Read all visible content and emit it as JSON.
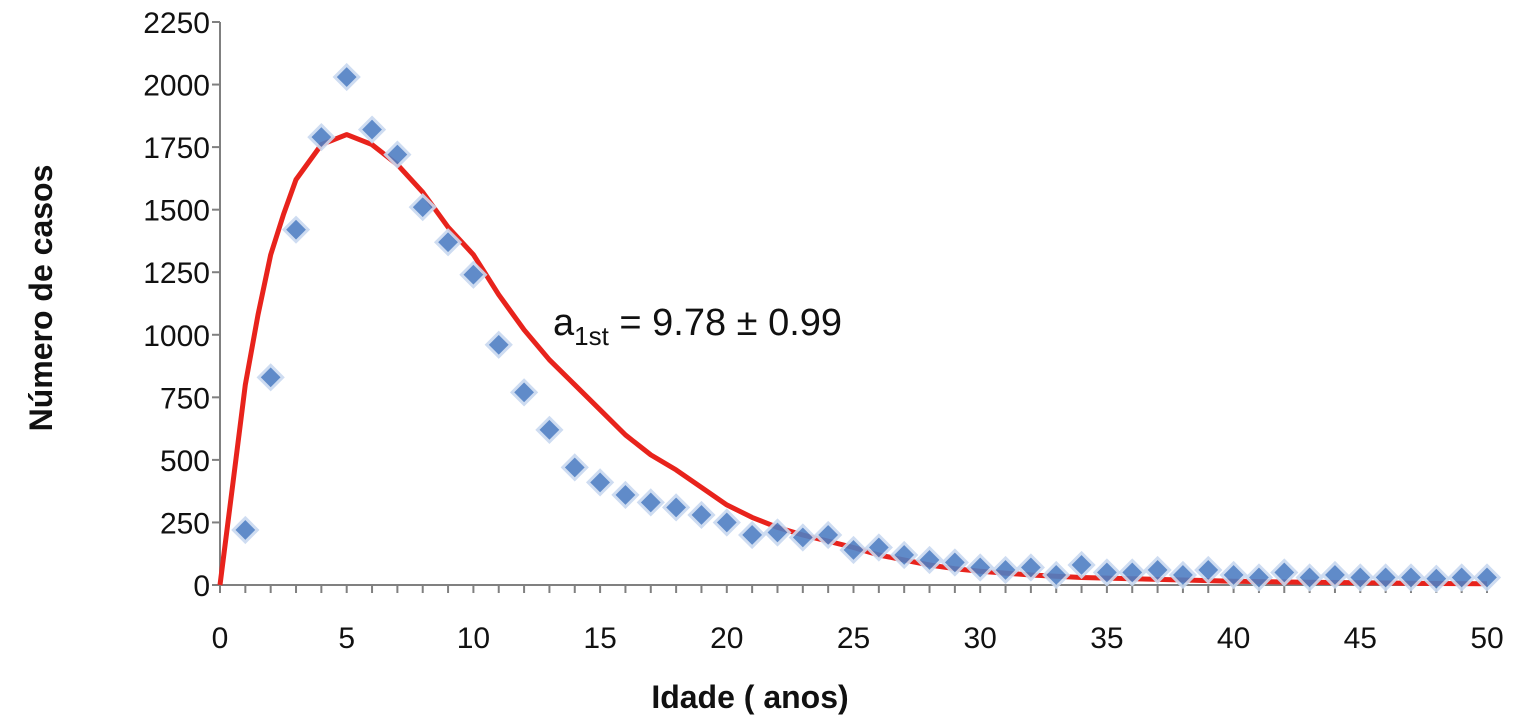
{
  "chart_data": {
    "type": "scatter",
    "title": "",
    "xlabel": "Idade ( anos)",
    "ylabel": "Número de casos",
    "xlim": [
      0,
      50
    ],
    "ylim": [
      0,
      2250
    ],
    "xticks": [
      "0",
      "5",
      "10",
      "15",
      "20",
      "25",
      "30",
      "35",
      "40",
      "45",
      "50"
    ],
    "yticks": [
      "0",
      "250",
      "500",
      "750",
      "1000",
      "1250",
      "1500",
      "1750",
      "2000",
      "2250"
    ],
    "grid": false,
    "annotation": {
      "main": "a",
      "sub": "1st",
      "rest": " = 9.78 ± 0.99"
    },
    "colors": {
      "points": "#4f7fc4",
      "fit": "#e8231c"
    },
    "series": [
      {
        "kind": "points",
        "x": [
          1,
          2,
          3,
          4,
          5,
          6,
          7,
          8,
          9,
          10,
          11,
          12,
          13,
          14,
          15,
          16,
          17,
          18,
          19,
          20,
          21,
          22,
          23,
          24,
          25,
          26,
          27,
          28,
          29,
          30,
          31,
          32,
          33,
          34,
          35,
          36,
          37,
          38,
          39,
          40,
          41,
          42,
          43,
          44,
          45,
          46,
          47,
          48,
          49,
          50
        ],
        "y": [
          220,
          830,
          1420,
          1790,
          2030,
          1820,
          1720,
          1510,
          1370,
          1240,
          960,
          770,
          620,
          470,
          410,
          360,
          330,
          310,
          280,
          250,
          200,
          210,
          190,
          200,
          140,
          150,
          120,
          100,
          90,
          70,
          60,
          70,
          40,
          80,
          50,
          50,
          60,
          40,
          60,
          40,
          30,
          50,
          30,
          40,
          30,
          30,
          30,
          25,
          30,
          30
        ]
      },
      {
        "kind": "fit",
        "x": [
          0,
          0.5,
          1,
          1.5,
          2,
          2.5,
          3,
          4,
          5,
          6,
          7,
          8,
          9,
          10,
          11,
          12,
          13,
          14,
          15,
          16,
          17,
          18,
          19,
          20,
          21,
          22,
          23,
          24,
          25,
          26,
          27,
          28,
          29,
          30,
          32,
          34,
          36,
          38,
          40,
          42,
          44,
          46,
          48,
          50
        ],
        "y": [
          0,
          400,
          800,
          1080,
          1320,
          1480,
          1620,
          1760,
          1800,
          1760,
          1680,
          1570,
          1430,
          1320,
          1160,
          1020,
          900,
          800,
          700,
          600,
          520,
          460,
          390,
          320,
          270,
          230,
          200,
          175,
          150,
          120,
          100,
          80,
          65,
          55,
          40,
          30,
          25,
          20,
          15,
          12,
          10,
          8,
          6,
          5
        ]
      }
    ]
  }
}
